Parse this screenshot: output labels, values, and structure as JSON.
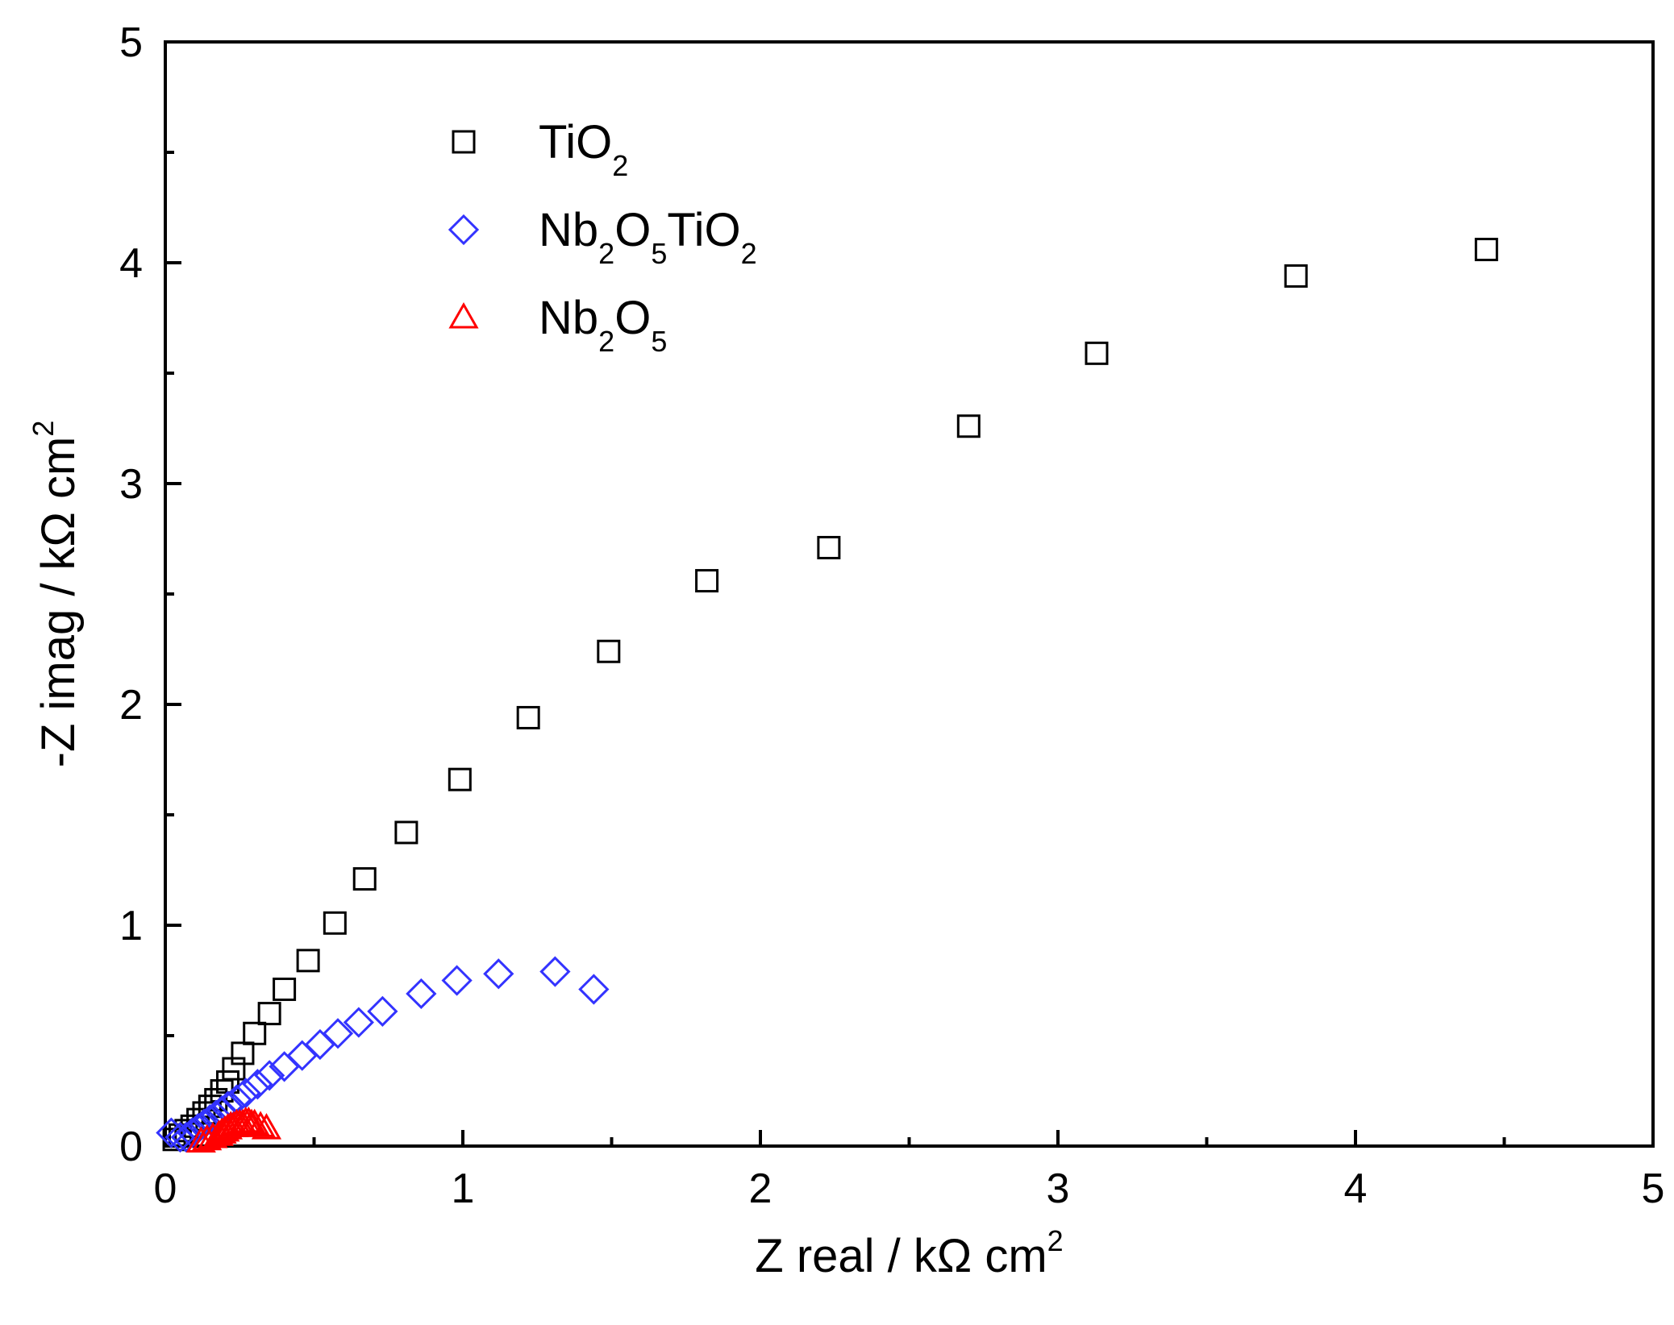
{
  "chart_data": {
    "type": "scatter",
    "title": "",
    "xlabel": {
      "main": "Z real / kΩ cm",
      "sup": "2"
    },
    "ylabel": {
      "main": "-Z imag / kΩ cm",
      "sup": "2"
    },
    "xlim": [
      0,
      5
    ],
    "ylim": [
      0,
      5
    ],
    "xticks": [
      0,
      1,
      2,
      3,
      4,
      5
    ],
    "yticks": [
      0,
      1,
      2,
      3,
      4,
      5
    ],
    "xtick_labels": [
      "0",
      "1",
      "2",
      "3",
      "4",
      "5"
    ],
    "ytick_labels": [
      "0",
      "1",
      "2",
      "3",
      "4",
      "5"
    ],
    "minor_step": 0.5,
    "grid": false,
    "legend_position": "top-left",
    "series": [
      {
        "name": "TiO2",
        "legend_parts": [
          [
            "TiO",
            ""
          ],
          [
            "2",
            "sub"
          ]
        ],
        "marker": "square",
        "color": "#000000",
        "points": [
          [
            0.03,
            0.03
          ],
          [
            0.05,
            0.05
          ],
          [
            0.07,
            0.07
          ],
          [
            0.09,
            0.09
          ],
          [
            0.11,
            0.12
          ],
          [
            0.13,
            0.15
          ],
          [
            0.15,
            0.18
          ],
          [
            0.17,
            0.21
          ],
          [
            0.19,
            0.25
          ],
          [
            0.21,
            0.29
          ],
          [
            0.23,
            0.35
          ],
          [
            0.26,
            0.42
          ],
          [
            0.3,
            0.51
          ],
          [
            0.35,
            0.6
          ],
          [
            0.4,
            0.71
          ],
          [
            0.48,
            0.84
          ],
          [
            0.57,
            1.01
          ],
          [
            0.67,
            1.21
          ],
          [
            0.81,
            1.42
          ],
          [
            0.99,
            1.66
          ],
          [
            1.22,
            1.94
          ],
          [
            1.49,
            2.24
          ],
          [
            1.82,
            2.56
          ],
          [
            2.23,
            2.71
          ],
          [
            2.7,
            3.26
          ],
          [
            3.13,
            3.59
          ],
          [
            3.8,
            3.94
          ],
          [
            4.44,
            4.06
          ]
        ]
      },
      {
        "name": "Nb2O5TiO2",
        "legend_parts": [
          [
            "Nb",
            ""
          ],
          [
            "2",
            "sub"
          ],
          [
            "O",
            ""
          ],
          [
            "5",
            "sub"
          ],
          [
            "TiO",
            ""
          ],
          [
            "2",
            "sub"
          ]
        ],
        "marker": "diamond",
        "color": "#3333ff",
        "points": [
          [
            0.02,
            0.06
          ],
          [
            0.05,
            0.04
          ],
          [
            0.07,
            0.04
          ],
          [
            0.09,
            0.06
          ],
          [
            0.11,
            0.08
          ],
          [
            0.13,
            0.1
          ],
          [
            0.15,
            0.12
          ],
          [
            0.17,
            0.14
          ],
          [
            0.19,
            0.16
          ],
          [
            0.21,
            0.18
          ],
          [
            0.24,
            0.21
          ],
          [
            0.27,
            0.24
          ],
          [
            0.31,
            0.28
          ],
          [
            0.35,
            0.32
          ],
          [
            0.4,
            0.36
          ],
          [
            0.46,
            0.41
          ],
          [
            0.52,
            0.46
          ],
          [
            0.58,
            0.51
          ],
          [
            0.65,
            0.56
          ],
          [
            0.73,
            0.61
          ],
          [
            0.86,
            0.69
          ],
          [
            0.98,
            0.75
          ],
          [
            1.12,
            0.78
          ],
          [
            1.31,
            0.79
          ],
          [
            1.44,
            0.71
          ]
        ]
      },
      {
        "name": "Nb2O5",
        "legend_parts": [
          [
            "Nb",
            ""
          ],
          [
            "2",
            "sub"
          ],
          [
            "O",
            ""
          ],
          [
            "5",
            "sub"
          ]
        ],
        "marker": "triangle",
        "color": "#ff0000",
        "points": [
          [
            0.12,
            0.02
          ],
          [
            0.14,
            0.03
          ],
          [
            0.16,
            0.04
          ],
          [
            0.18,
            0.05
          ],
          [
            0.19,
            0.06
          ],
          [
            0.2,
            0.07
          ],
          [
            0.21,
            0.08
          ],
          [
            0.22,
            0.09
          ],
          [
            0.23,
            0.09
          ],
          [
            0.24,
            0.1
          ],
          [
            0.25,
            0.1
          ],
          [
            0.26,
            0.1
          ],
          [
            0.27,
            0.11
          ],
          [
            0.28,
            0.11
          ],
          [
            0.29,
            0.1
          ],
          [
            0.3,
            0.1
          ],
          [
            0.32,
            0.09
          ],
          [
            0.34,
            0.08
          ]
        ]
      }
    ]
  }
}
